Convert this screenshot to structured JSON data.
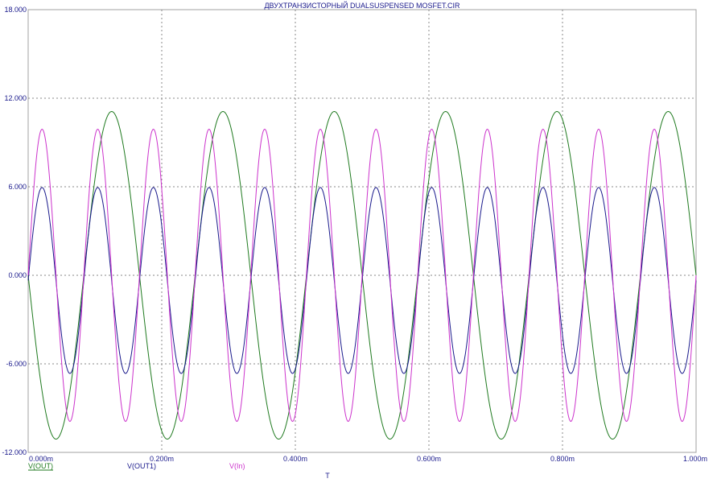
{
  "chart_data": {
    "type": "line",
    "title": "ДВУХТРАНЗИСТОРНЫЙ DUALSUSPENSED MOSFET.CIR",
    "xlabel": "T",
    "ylabel": "",
    "xlim": [
      0,
      0.001
    ],
    "ylim": [
      -12,
      18
    ],
    "x_ticks": [
      0,
      0.0002,
      0.0004,
      0.0006,
      0.0008,
      0.001
    ],
    "x_tick_labels": [
      "0.000m",
      "0.200m",
      "0.400m",
      "0.600m",
      "0.800m",
      "1.000m"
    ],
    "y_ticks": [
      -12,
      -6,
      0,
      6,
      12,
      18
    ],
    "y_tick_labels": [
      "-12.000",
      "-6.000",
      "0.000",
      "6.000",
      "12.000",
      "18.000"
    ],
    "grid": true,
    "legend_position": "bottom",
    "series": [
      {
        "name": "V(OUT)",
        "color": "#1f7a1f",
        "waveform": "sine",
        "amplitude": -11.1,
        "offset": 0,
        "frequency_hz": 6000,
        "phase_deg": 0
      },
      {
        "name": "V(OUT1)",
        "color": "#1a1a8c",
        "waveform": "sine",
        "amplitude": 6.3,
        "offset": -0.35,
        "frequency_hz": 12000,
        "phase_deg": 0
      },
      {
        "name": "V(In)",
        "color": "#cc33cc",
        "waveform": "sine",
        "amplitude": 9.9,
        "offset": 0,
        "frequency_hz": 12000,
        "phase_deg": 0
      }
    ]
  }
}
